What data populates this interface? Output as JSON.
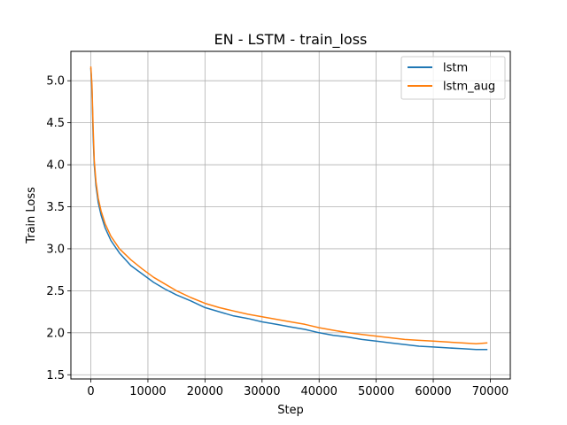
{
  "chart_data": {
    "type": "line",
    "title": "EN - LSTM - train_loss",
    "xlabel": "Step",
    "ylabel": "Train Loss",
    "xlim": [
      -3500,
      73500
    ],
    "ylim": [
      1.45,
      5.35
    ],
    "xticks": [
      0,
      10000,
      20000,
      30000,
      40000,
      50000,
      60000,
      70000
    ],
    "yticks": [
      1.5,
      2.0,
      2.5,
      3.0,
      3.5,
      4.0,
      4.5,
      5.0
    ],
    "grid": true,
    "legend_position": "top-right",
    "series": [
      {
        "name": "lstm",
        "color": "#1f77b4",
        "x": [
          0,
          200,
          400,
          600,
          900,
          1300,
          1800,
          2500,
          3500,
          5000,
          7000,
          9000,
          11000,
          13000,
          15000,
          17500,
          20000,
          22500,
          25000,
          27500,
          30000,
          32500,
          35000,
          37500,
          40000,
          42500,
          45000,
          47500,
          50000,
          52500,
          55000,
          57500,
          60000,
          62500,
          65000,
          67500,
          69500
        ],
        "values": [
          5.15,
          4.9,
          4.35,
          4.0,
          3.75,
          3.55,
          3.4,
          3.25,
          3.1,
          2.95,
          2.8,
          2.7,
          2.6,
          2.52,
          2.45,
          2.38,
          2.3,
          2.25,
          2.2,
          2.17,
          2.13,
          2.1,
          2.07,
          2.04,
          2.0,
          1.97,
          1.95,
          1.92,
          1.9,
          1.88,
          1.86,
          1.84,
          1.83,
          1.82,
          1.81,
          1.8,
          1.8
        ]
      },
      {
        "name": "lstm_aug",
        "color": "#ff7f0e",
        "x": [
          0,
          200,
          400,
          600,
          900,
          1300,
          1800,
          2500,
          3500,
          5000,
          7000,
          9000,
          11000,
          13000,
          15000,
          17500,
          20000,
          22500,
          25000,
          27500,
          30000,
          32500,
          35000,
          37500,
          40000,
          42500,
          45000,
          47500,
          50000,
          52500,
          55000,
          57500,
          60000,
          62500,
          65000,
          67500,
          69500
        ],
        "values": [
          5.17,
          4.95,
          4.45,
          4.05,
          3.8,
          3.6,
          3.45,
          3.3,
          3.15,
          3.0,
          2.87,
          2.76,
          2.66,
          2.58,
          2.5,
          2.42,
          2.35,
          2.3,
          2.26,
          2.22,
          2.19,
          2.16,
          2.13,
          2.1,
          2.06,
          2.03,
          2.0,
          1.98,
          1.96,
          1.94,
          1.92,
          1.91,
          1.9,
          1.89,
          1.88,
          1.87,
          1.88
        ]
      }
    ]
  }
}
